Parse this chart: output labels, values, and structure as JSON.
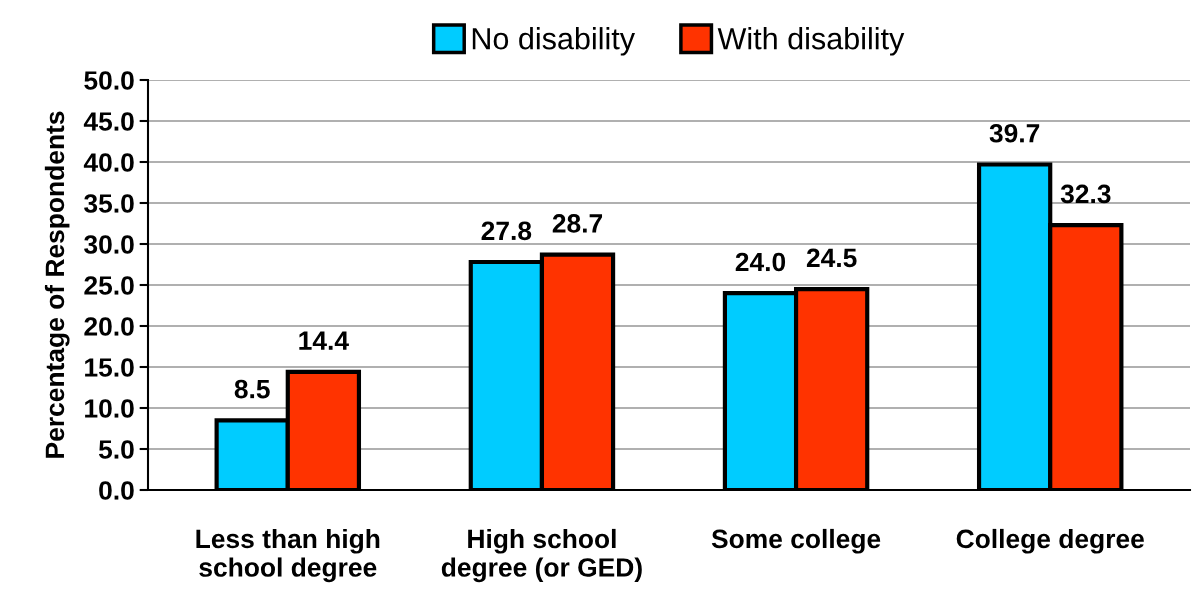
{
  "chart_data": {
    "type": "bar",
    "ylabel": "Percentage of Respondents",
    "categories": [
      "Less than high\nschool degree",
      "High school\ndegree (or GED)",
      "Some college",
      "College degree"
    ],
    "series": [
      {
        "name": "No disability",
        "color": "#00ccff",
        "values": [
          8.5,
          27.8,
          24.0,
          39.7
        ],
        "value_labels": [
          "8.5",
          "27.8",
          "24.0",
          "39.7"
        ]
      },
      {
        "name": "With disability",
        "color": "#ff3300",
        "values": [
          14.4,
          28.7,
          24.5,
          32.3
        ],
        "value_labels": [
          "14.4",
          "28.7",
          "24.5",
          "32.3"
        ]
      }
    ],
    "ylim": [
      0,
      50
    ],
    "yticks": [
      {
        "value": 0,
        "label": "0.0"
      },
      {
        "value": 5,
        "label": "5.0"
      },
      {
        "value": 10,
        "label": "10.0"
      },
      {
        "value": 15,
        "label": "15.0"
      },
      {
        "value": 20,
        "label": "20.0"
      },
      {
        "value": 25,
        "label": "25.0"
      },
      {
        "value": 30,
        "label": "30.0"
      },
      {
        "value": 35,
        "label": "35.0"
      },
      {
        "value": 40,
        "label": "40.0"
      },
      {
        "value": 45,
        "label": "45.0"
      },
      {
        "value": 50,
        "label": "50.0"
      }
    ],
    "grid": "y",
    "legend": "top"
  }
}
